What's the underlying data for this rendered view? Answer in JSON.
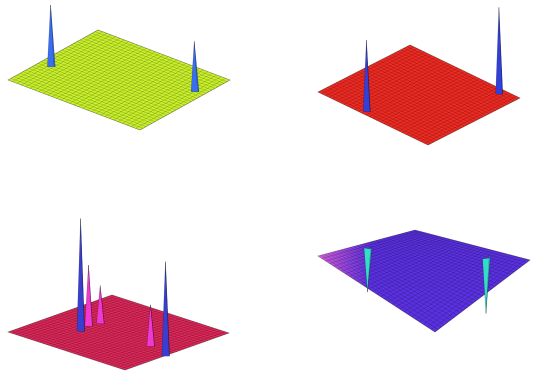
{
  "chart_data": [
    {
      "type": "surface",
      "color": "#c8f02a",
      "xlim": [
        0,
        1
      ],
      "zlim": [
        0,
        1
      ],
      "ylim": [
        -1,
        1
      ],
      "series": [
        {
          "color": "#3a6ef0",
          "x": [
            0.37,
            0.72
          ],
          "z": [
            0.07,
            0.92
          ],
          "values": [
            0.8,
            0.65
          ]
        }
      ]
    },
    {
      "type": "surface",
      "color": "#ee2a22",
      "xlim": [
        0,
        1
      ],
      "zlim": [
        0,
        1
      ],
      "ylim": [
        -1,
        1
      ],
      "series": [
        {
          "color": "#3340d8",
          "x": [
            0.06,
            0.95
          ],
          "z": [
            0.39,
            0.85
          ],
          "values": [
            0.82,
            1.0
          ]
        }
      ]
    },
    {
      "type": "surface",
      "color": "#e0285a",
      "xlim": [
        0,
        1
      ],
      "zlim": [
        0,
        1
      ],
      "ylim": [
        -1,
        1
      ],
      "series": [
        {
          "color": "#3a3ed0",
          "x": [
            0.36,
            0.4
          ],
          "z": [
            0.3,
            0.99
          ],
          "values": [
            0.97,
            0.81
          ]
        },
        {
          "color": "#ee38d0",
          "x": [
            0.47,
            0.56,
            0.47
          ],
          "z": [
            0.27,
            0.29,
            0.8
          ],
          "values": [
            0.52,
            0.32,
            0.35
          ]
        }
      ]
    },
    {
      "type": "surface",
      "color": "#5a30e0",
      "xlim": [
        0,
        1
      ],
      "zlim": [
        0,
        1
      ],
      "ylim": [
        -1,
        1
      ],
      "series": [
        {
          "color": "#33ddc8",
          "x": [
            0.45,
            0.9
          ],
          "z": [
            0.05,
            0.7
          ],
          "values": [
            -0.5,
            -0.63
          ]
        }
      ]
    }
  ]
}
